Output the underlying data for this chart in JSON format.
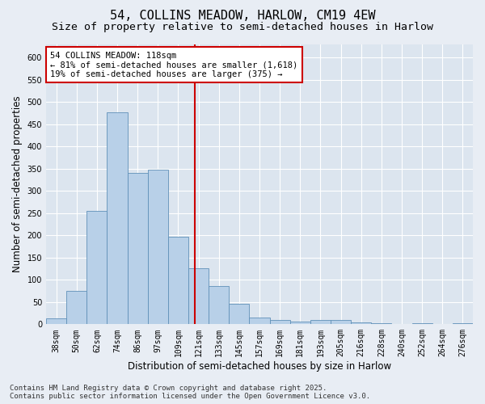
{
  "title1": "54, COLLINS MEADOW, HARLOW, CM19 4EW",
  "title2": "Size of property relative to semi-detached houses in Harlow",
  "xlabel": "Distribution of semi-detached houses by size in Harlow",
  "ylabel": "Number of semi-detached properties",
  "categories": [
    "38sqm",
    "50sqm",
    "62sqm",
    "74sqm",
    "86sqm",
    "97sqm",
    "109sqm",
    "121sqm",
    "133sqm",
    "145sqm",
    "157sqm",
    "169sqm",
    "181sqm",
    "193sqm",
    "205sqm",
    "216sqm",
    "228sqm",
    "240sqm",
    "252sqm",
    "264sqm",
    "276sqm"
  ],
  "values": [
    14,
    75,
    255,
    478,
    340,
    348,
    197,
    127,
    87,
    46,
    15,
    9,
    6,
    9,
    9,
    5,
    2,
    0,
    2,
    0,
    2
  ],
  "bar_color": "#b8d0e8",
  "bar_edge_color": "#6090b8",
  "vline_color": "#cc0000",
  "vline_x_data": 6.83,
  "annotation_line1": "54 COLLINS MEADOW: 118sqm",
  "annotation_line2": "← 81% of semi-detached houses are smaller (1,618)",
  "annotation_line3": "19% of semi-detached houses are larger (375) →",
  "annotation_box_color": "#ffffff",
  "annotation_box_edge": "#cc0000",
  "footnote1": "Contains HM Land Registry data © Crown copyright and database right 2025.",
  "footnote2": "Contains public sector information licensed under the Open Government Licence v3.0.",
  "ylim": [
    0,
    630
  ],
  "yticks": [
    0,
    50,
    100,
    150,
    200,
    250,
    300,
    350,
    400,
    450,
    500,
    550,
    600
  ],
  "bg_color": "#e8edf4",
  "plot_bg_color": "#dce5ef",
  "grid_color": "#ffffff",
  "title_fontsize": 11,
  "subtitle_fontsize": 9.5,
  "tick_fontsize": 7,
  "label_fontsize": 8.5,
  "footnote_fontsize": 6.5,
  "annotation_fontsize": 7.5
}
